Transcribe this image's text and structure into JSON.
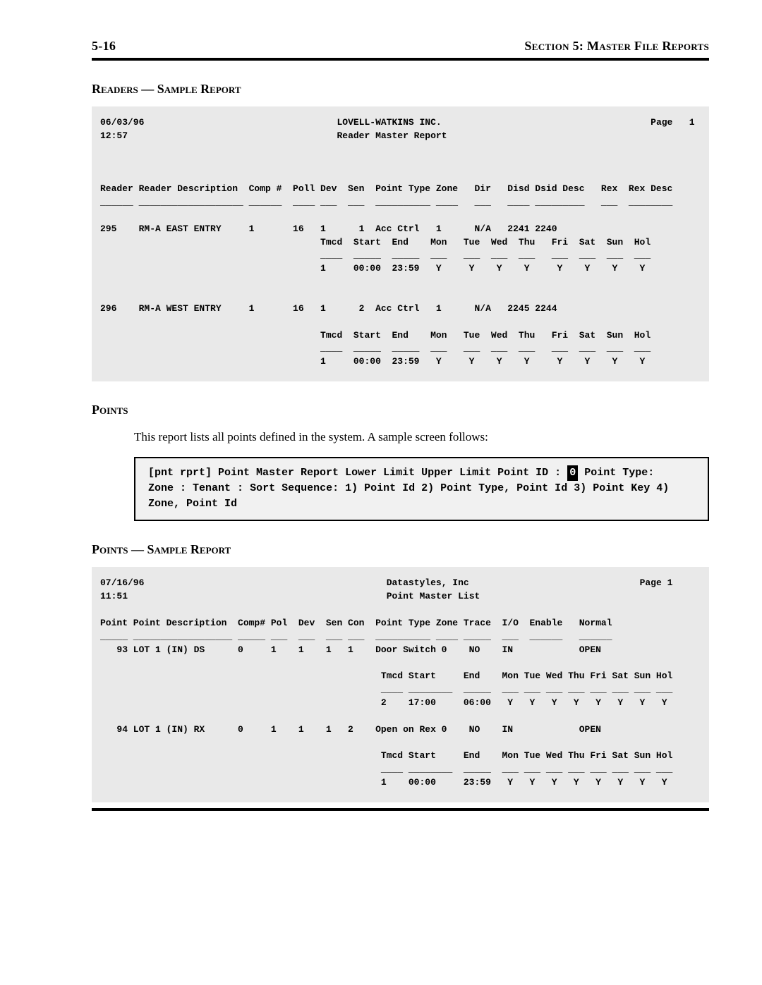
{
  "header": {
    "page_num": "5-16",
    "section_label": "Section 5: Master File Reports"
  },
  "readers_title": "Readers — Sample Report",
  "readers_report": {
    "hdr_line1_left": "06/03/96",
    "hdr_line1_center": "LOVELL-WATKINS INC.",
    "hdr_line1_right": "Page   1",
    "hdr_line2_left": "12:57",
    "hdr_line2_center": "Reader Master Report",
    "col_line": "Reader Reader Description  Comp #  Poll Dev  Sen  Point Type Zone   Dir   Disd Dsid Desc   Rex  Rex Desc",
    "underscores": "______ ___________________ ______  ____ ___  ___  __________ ____   ___   ____ _________   ___  ________",
    "row1_main": "295    RM-A EAST ENTRY     1       16   1      1  Acc Ctrl   1      N/A   2241 2240",
    "row1_sched": "                                        Tmcd  Start  End    Mon   Tue  Wed  Thu   Fri  Sat  Sun  Hol",
    "row1_u": "                                        ____  _____  _____  ___   ___  ___  ___   ___  ___  ___  ___",
    "row1_vals": "                                        1     00:00  23:59   Y     Y    Y    Y     Y    Y    Y    Y",
    "row2_main": "296    RM-A WEST ENTRY     1       16   1      2  Acc Ctrl   1      N/A   2245 2244",
    "row2_sched": "                                        Tmcd  Start  End    Mon   Tue  Wed  Thu   Fri  Sat  Sun  Hol",
    "row2_u": "                                        ____  _____  _____  ___   ___  ___  ___   ___  ___  ___  ___",
    "row2_vals": "                                        1     00:00  23:59   Y     Y    Y    Y     Y    Y    Y    Y"
  },
  "points_heading": "Points",
  "points_intro": "This report lists all points defined in the system.  A sample screen follows:",
  "terminal": {
    "title_left": "[pnt rprt]",
    "title_right": "Point Master Report",
    "limits_l": "Lower Limit",
    "limits_r": "Upper Limit",
    "field_point_id": "Point ID  :",
    "field_point_id_val": "0 ",
    "field_point_type": "Point Type:",
    "field_zone": "Zone      :",
    "field_tenant": "Tenant    :",
    "sort_label": "Sort Sequence:",
    "sort_1": "1) Point Id",
    "sort_2": "2) Point Type, Point Id",
    "sort_3": "3) Point Key",
    "sort_4": "4) Zone, Point Id"
  },
  "points_sample_title": "Points — Sample Report",
  "points_report": {
    "hdr_line1_left": "07/16/96",
    "hdr_line1_center": "Datastyles, Inc",
    "hdr_line1_right": "Page 1",
    "hdr_line2_left": "11:51",
    "hdr_line2_center": "Point Master List",
    "col_line": "Point Point Description  Comp# Pol  Dev  Sen Con  Point Type Zone Trace  I/O  Enable   Normal",
    "underscores": "_____ __________________ _____ ___  ___  ___ ___  __________ ____ _____  ___  ______   ______",
    "r1_main": "   93 LOT 1 (IN) DS      0     1    1    1   1    Door Switch 0    NO    IN            OPEN",
    "r1_sched": "                                                   Tmcd Start     End    Mon Tue Wed Thu Fri Sat Sun Hol",
    "r1_u": "                                                   ____ ________  _____  ___ ___ ___ ___ ___ ___ ___ ___",
    "r1_vals": "                                                   2    17:00     06:00   Y   Y   Y   Y   Y   Y   Y   Y",
    "r2_main": "   94 LOT 1 (IN) RX      0     1    1    1   2    Open on Rex 0    NO    IN            OPEN",
    "r2_sched": "                                                   Tmcd Start     End    Mon Tue Wed Thu Fri Sat Sun Hol",
    "r2_u": "                                                   ____ ________  _____  ___ ___ ___ ___ ___ ___ ___ ___",
    "r2_vals": "                                                   1    00:00     23:59   Y   Y   Y   Y   Y   Y   Y   Y"
  }
}
